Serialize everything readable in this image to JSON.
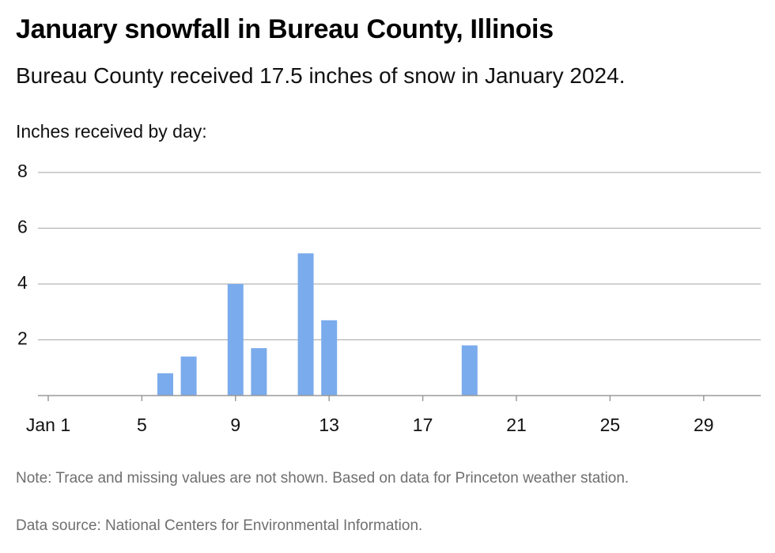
{
  "header": {
    "title": "January snowfall in Bureau County, Illinois",
    "subtitle": "Bureau County received 17.5 inches of snow in January 2024."
  },
  "footer": {
    "note": "Note: Trace and missing values are not shown. Based on data for Princeton weather station.",
    "source": "Data source: National Centers for Environmental Information."
  },
  "chart_data": {
    "type": "bar",
    "title": "January snowfall in Bureau County, Illinois",
    "ylabel": "Inches received by day:",
    "xlabel": "",
    "x_tick_labels": [
      "Jan 1",
      "5",
      "9",
      "13",
      "17",
      "21",
      "25",
      "29"
    ],
    "x_tick_days": [
      1,
      5,
      9,
      13,
      17,
      21,
      25,
      29
    ],
    "y_ticks": [
      2,
      4,
      6,
      8
    ],
    "ylim": [
      0,
      8
    ],
    "xlim": [
      1,
      31
    ],
    "grid": true,
    "bar_color": "#7aabec",
    "series": [
      {
        "x": [
          6,
          7,
          9,
          10,
          12,
          13,
          19
        ],
        "values": [
          0.8,
          1.4,
          4.0,
          1.7,
          5.1,
          2.7,
          1.8
        ]
      }
    ]
  }
}
